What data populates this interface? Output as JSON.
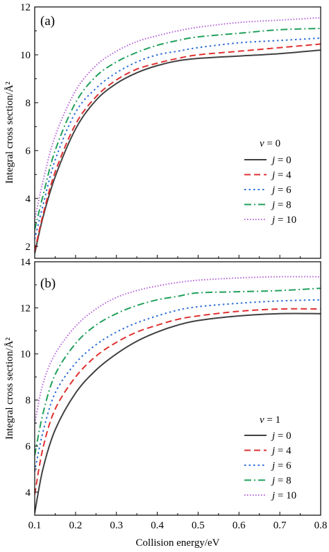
{
  "chart_data": [
    {
      "type": "line",
      "panel_label": "(a)",
      "xlabel": "",
      "ylabel": "Integral cross section/Å²",
      "xlim": [
        0.1,
        0.8
      ],
      "ylim": [
        1.5,
        12
      ],
      "yticks": [
        2,
        4,
        6,
        8,
        10,
        12
      ],
      "legend": {
        "title_var": "v",
        "title_value": "0",
        "placement": "center-right"
      },
      "series": [
        {
          "name": "j = 0",
          "var": "j",
          "value": "0",
          "color": "#404040",
          "dash": "solid",
          "x": [
            0.1,
            0.12,
            0.15,
            0.2,
            0.25,
            0.3,
            0.35,
            0.4,
            0.45,
            0.5,
            0.6,
            0.7,
            0.8
          ],
          "y": [
            1.7,
            3.2,
            4.9,
            6.9,
            8.1,
            8.8,
            9.25,
            9.55,
            9.75,
            9.85,
            9.95,
            10.05,
            10.2
          ]
        },
        {
          "name": "j = 4",
          "var": "j",
          "value": "4",
          "color": "#e03030",
          "dash": "dashed",
          "x": [
            0.1,
            0.12,
            0.15,
            0.2,
            0.25,
            0.3,
            0.35,
            0.4,
            0.45,
            0.5,
            0.6,
            0.7,
            0.8
          ],
          "y": [
            1.8,
            3.3,
            5.1,
            7.1,
            8.25,
            8.95,
            9.4,
            9.65,
            9.85,
            10.0,
            10.15,
            10.3,
            10.45
          ]
        },
        {
          "name": "j = 6",
          "var": "j",
          "value": "6",
          "color": "#2f6fd6",
          "dash": "dotted",
          "x": [
            0.1,
            0.12,
            0.15,
            0.2,
            0.25,
            0.3,
            0.35,
            0.4,
            0.45,
            0.5,
            0.6,
            0.7,
            0.8
          ],
          "y": [
            2.3,
            3.7,
            5.6,
            7.6,
            8.6,
            9.25,
            9.7,
            10.0,
            10.15,
            10.3,
            10.5,
            10.6,
            10.7
          ]
        },
        {
          "name": "j = 8",
          "var": "j",
          "value": "8",
          "color": "#1fa05a",
          "dash": "dashdot",
          "x": [
            0.1,
            0.12,
            0.15,
            0.2,
            0.25,
            0.3,
            0.35,
            0.4,
            0.45,
            0.5,
            0.6,
            0.7,
            0.8
          ],
          "y": [
            2.7,
            4.1,
            6.0,
            8.0,
            9.1,
            9.7,
            10.1,
            10.4,
            10.6,
            10.75,
            10.9,
            11.05,
            11.1
          ]
        },
        {
          "name": "j = 10",
          "var": "j",
          "value": "10",
          "color": "#b25fd6",
          "dash": "dotted-fine",
          "x": [
            0.1,
            0.12,
            0.15,
            0.2,
            0.25,
            0.3,
            0.35,
            0.4,
            0.45,
            0.5,
            0.6,
            0.7,
            0.8
          ],
          "y": [
            3.1,
            4.7,
            6.6,
            8.5,
            9.55,
            10.15,
            10.55,
            10.8,
            11.0,
            11.15,
            11.35,
            11.45,
            11.55
          ]
        }
      ]
    },
    {
      "type": "line",
      "panel_label": "(b)",
      "xlabel": "Collision energy/eV",
      "ylabel": "Integral cross section/Å²",
      "xlim": [
        0.1,
        0.8
      ],
      "ylim": [
        3.0,
        14
      ],
      "yticks": [
        4,
        6,
        8,
        10,
        12,
        14
      ],
      "xticks": [
        "0.1",
        "0.2",
        "0.3",
        "0.4",
        "0.5",
        "0.6",
        "0.7",
        "0.8"
      ],
      "legend": {
        "title_var": "v",
        "title_value": "1",
        "placement": "bottom-right"
      },
      "series": [
        {
          "name": "j = 0",
          "var": "j",
          "value": "0",
          "color": "#404040",
          "dash": "solid",
          "x": [
            0.1,
            0.12,
            0.15,
            0.2,
            0.25,
            0.3,
            0.35,
            0.4,
            0.45,
            0.5,
            0.6,
            0.7,
            0.8
          ],
          "y": [
            3.1,
            5.0,
            6.7,
            8.3,
            9.3,
            10.0,
            10.55,
            10.95,
            11.25,
            11.45,
            11.65,
            11.75,
            11.75
          ]
        },
        {
          "name": "j = 4",
          "var": "j",
          "value": "4",
          "color": "#e03030",
          "dash": "dashed",
          "x": [
            0.1,
            0.12,
            0.15,
            0.2,
            0.25,
            0.3,
            0.35,
            0.4,
            0.45,
            0.5,
            0.6,
            0.7,
            0.8
          ],
          "y": [
            3.9,
            5.9,
            7.6,
            9.0,
            9.9,
            10.5,
            10.95,
            11.25,
            11.5,
            11.65,
            11.85,
            11.95,
            11.95
          ]
        },
        {
          "name": "j = 6",
          "var": "j",
          "value": "6",
          "color": "#2f6fd6",
          "dash": "dotted",
          "x": [
            0.1,
            0.12,
            0.15,
            0.2,
            0.25,
            0.3,
            0.35,
            0.4,
            0.45,
            0.5,
            0.6,
            0.7,
            0.8
          ],
          "y": [
            4.9,
            6.6,
            8.3,
            9.6,
            10.4,
            10.95,
            11.35,
            11.65,
            11.9,
            12.05,
            12.2,
            12.3,
            12.35
          ]
        },
        {
          "name": "j = 8",
          "var": "j",
          "value": "8",
          "color": "#1fa05a",
          "dash": "dashdot",
          "x": [
            0.1,
            0.12,
            0.15,
            0.2,
            0.25,
            0.3,
            0.35,
            0.4,
            0.45,
            0.5,
            0.6,
            0.7,
            0.8
          ],
          "y": [
            5.6,
            7.4,
            9.1,
            10.45,
            11.25,
            11.75,
            12.1,
            12.35,
            12.5,
            12.65,
            12.7,
            12.75,
            12.85
          ]
        },
        {
          "name": "j = 10",
          "var": "j",
          "value": "10",
          "color": "#b25fd6",
          "dash": "dotted-fine",
          "x": [
            0.1,
            0.12,
            0.15,
            0.2,
            0.25,
            0.3,
            0.35,
            0.4,
            0.45,
            0.5,
            0.6,
            0.7,
            0.8
          ],
          "y": [
            7.0,
            8.7,
            10.0,
            11.2,
            11.95,
            12.45,
            12.75,
            12.95,
            13.1,
            13.2,
            13.3,
            13.35,
            13.35
          ]
        }
      ]
    }
  ]
}
